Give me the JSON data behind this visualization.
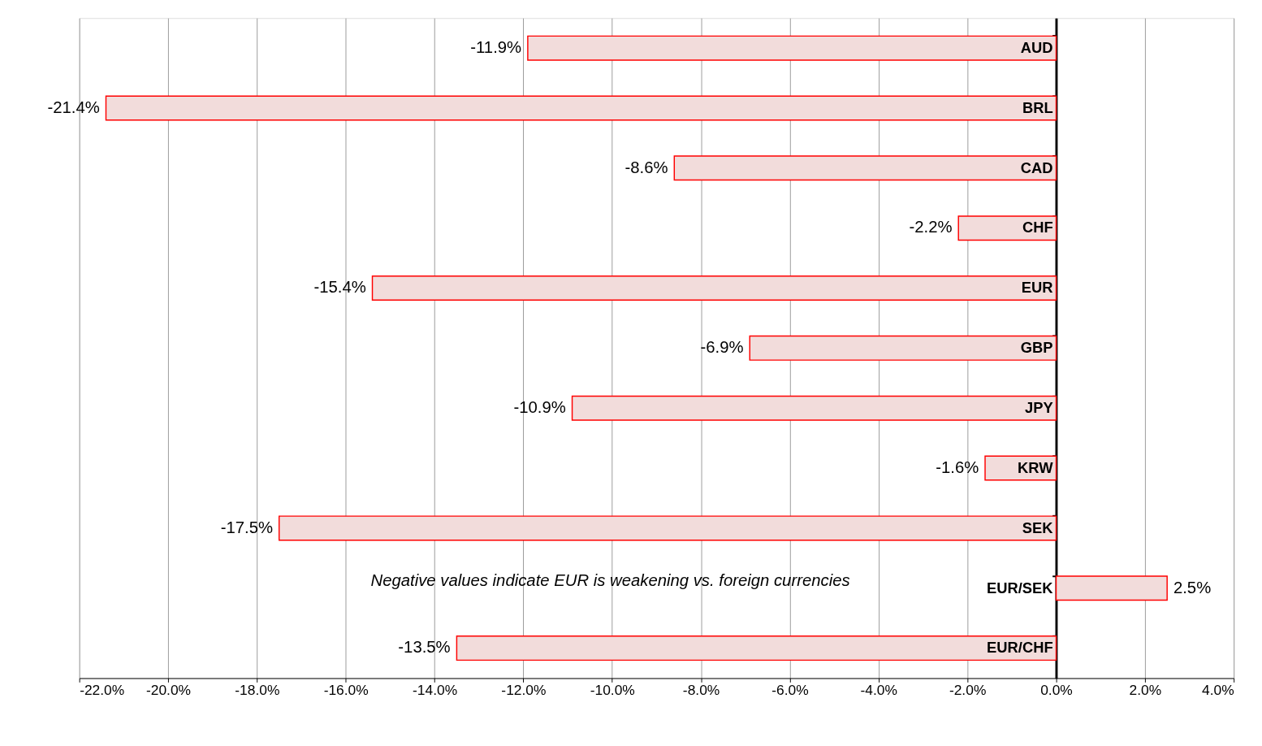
{
  "chart_data": {
    "type": "bar",
    "orientation": "horizontal",
    "categories": [
      "AUD",
      "BRL",
      "CAD",
      "CHF",
      "EUR",
      "GBP",
      "JPY",
      "KRW",
      "SEK",
      "EUR/SEK",
      "EUR/CHF"
    ],
    "values": [
      -11.9,
      -21.4,
      -8.6,
      -2.2,
      -15.4,
      -6.9,
      -10.9,
      -1.6,
      -17.5,
      2.5,
      -13.5
    ],
    "value_labels": [
      "-11.9%",
      "-21.4%",
      "-8.6%",
      "-2.2%",
      "-15.4%",
      "-6.9%",
      "-10.9%",
      "-1.6%",
      "-17.5%",
      "2.5%",
      "-13.5%"
    ],
    "color": "#f2dcdb",
    "xlim": [
      -22,
      4
    ],
    "xticks": [
      {
        "value": -22,
        "label": "-22.0%"
      },
      {
        "value": -20,
        "label": "-20.0%"
      },
      {
        "value": -18,
        "label": "-18.0%"
      },
      {
        "value": -16,
        "label": "-16.0%"
      },
      {
        "value": -14,
        "label": "-14.0%"
      },
      {
        "value": -12,
        "label": "-12.0%"
      },
      {
        "value": -10,
        "label": "-10.0%"
      },
      {
        "value": -8,
        "label": "-8.0%"
      },
      {
        "value": -6,
        "label": "-6.0%"
      },
      {
        "value": -4,
        "label": "-4.0%"
      },
      {
        "value": -2,
        "label": "-2.0%"
      },
      {
        "value": 0,
        "label": "0.0%"
      },
      {
        "value": 2,
        "label": "2.0%"
      },
      {
        "value": 4,
        "label": "4.0%"
      }
    ],
    "grid": "x",
    "annotations": [
      "Negative values indicate EUR is weakening vs. foreign currencies"
    ]
  }
}
